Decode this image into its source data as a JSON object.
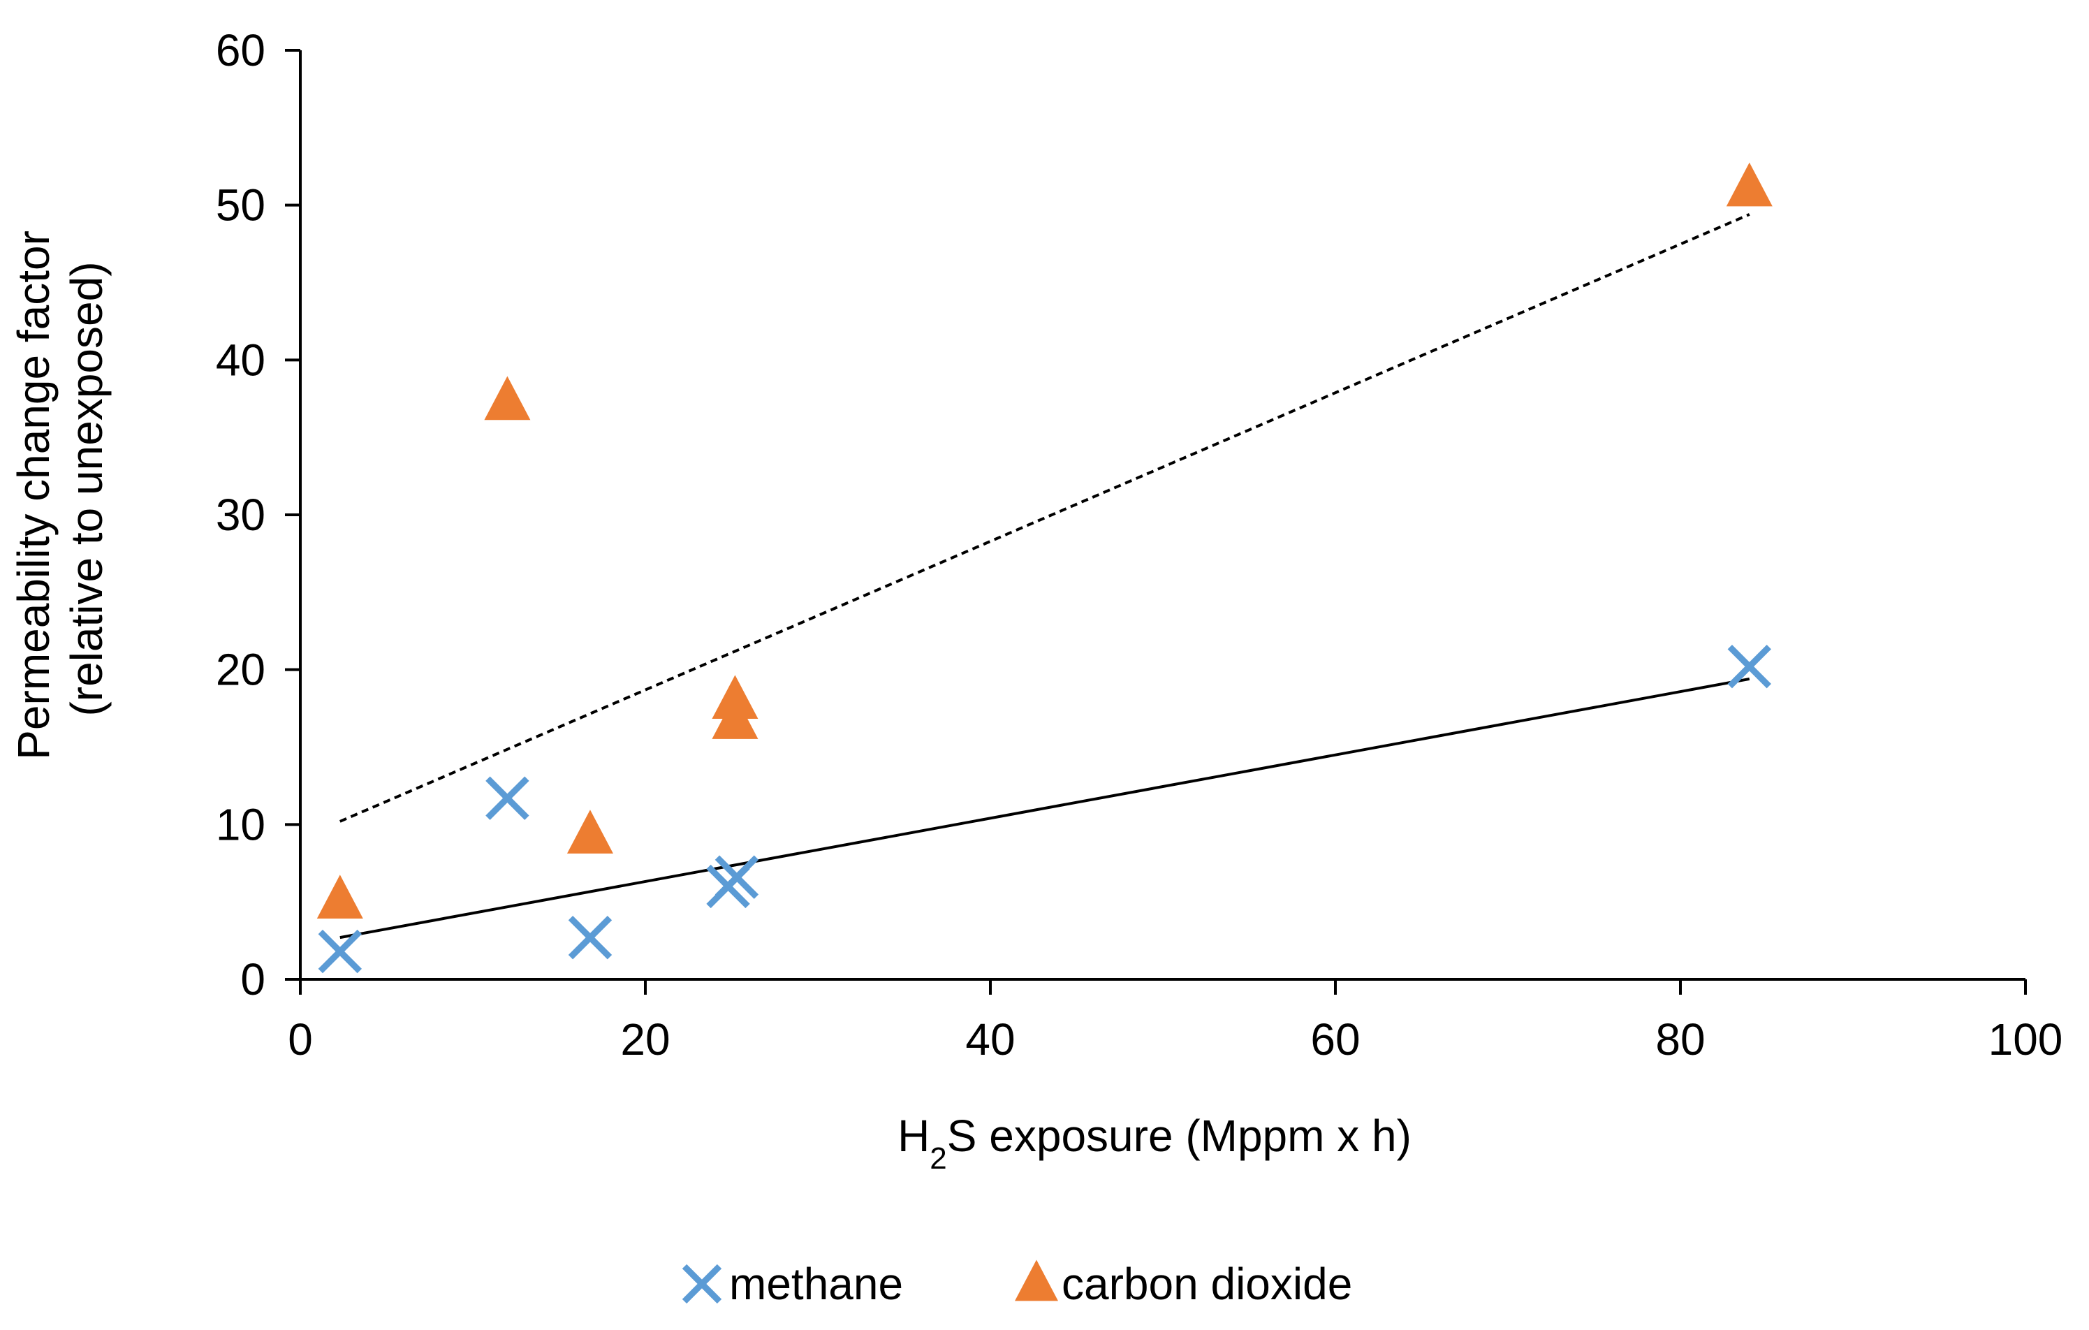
{
  "chart_data": {
    "type": "scatter",
    "title": "",
    "xlabel": {
      "prefix": "H",
      "subscript": "2",
      "suffix": "S exposure (Mppm x h)"
    },
    "ylabel_lines": [
      "Permeability change factor",
      "(relative to unexposed)"
    ],
    "xlim": [
      0,
      100
    ],
    "ylim": [
      0,
      60
    ],
    "x_ticks": [
      0,
      20,
      40,
      60,
      80,
      100
    ],
    "y_ticks": [
      0,
      10,
      20,
      30,
      40,
      50,
      60
    ],
    "grid": false,
    "legend_position": "bottom",
    "series": [
      {
        "name": "methane",
        "marker": "x",
        "color": "#5B9BD5",
        "points": [
          {
            "x": 2.3,
            "y": 1.8
          },
          {
            "x": 12.0,
            "y": 11.7
          },
          {
            "x": 16.8,
            "y": 2.7
          },
          {
            "x": 24.8,
            "y": 6.0
          },
          {
            "x": 25.3,
            "y": 6.6
          },
          {
            "x": 84.0,
            "y": 20.2
          }
        ],
        "trendline": {
          "style": "solid",
          "color": "#000000",
          "from": {
            "x": 2.3,
            "y": 2.7
          },
          "to": {
            "x": 84.0,
            "y": 19.4
          }
        }
      },
      {
        "name": "carbon dioxide",
        "marker": "triangle",
        "color": "#ED7D31",
        "points": [
          {
            "x": 2.3,
            "y": 5.0
          },
          {
            "x": 12.0,
            "y": 37.2
          },
          {
            "x": 16.8,
            "y": 9.2
          },
          {
            "x": 25.2,
            "y": 16.6
          },
          {
            "x": 25.2,
            "y": 17.9
          },
          {
            "x": 84.0,
            "y": 51.0
          }
        ],
        "trendline": {
          "style": "dashed",
          "color": "#000000",
          "from": {
            "x": 2.3,
            "y": 10.2
          },
          "to": {
            "x": 84.0,
            "y": 49.4
          }
        }
      }
    ]
  }
}
